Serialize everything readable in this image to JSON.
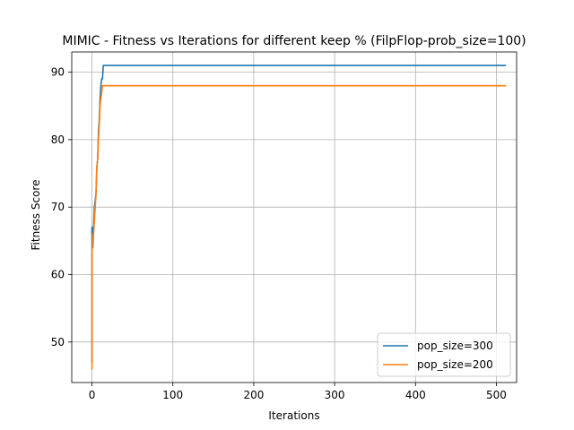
{
  "chart_data": {
    "type": "line",
    "title": "MIMIC - Fitness vs Iterations for different keep % (FilpFlop-prob_size=100)",
    "xlabel": "Iterations",
    "ylabel": "Fitness Score",
    "xlim": [
      -25,
      525
    ],
    "ylim": [
      44,
      93
    ],
    "xticks": [
      0,
      100,
      200,
      300,
      400,
      500
    ],
    "yticks": [
      50,
      60,
      70,
      80,
      90
    ],
    "grid": true,
    "legend_position": "lower right",
    "series": [
      {
        "name": "pop_size=300",
        "color": "#1f77b4",
        "x": [
          0,
          0,
          1,
          1,
          2,
          3,
          4,
          5,
          6,
          7,
          8,
          9,
          10,
          11,
          12,
          13,
          14,
          15,
          511
        ],
        "y": [
          47,
          67,
          67,
          64,
          67,
          70,
          71,
          72,
          76,
          77,
          81,
          83,
          86,
          88,
          89,
          89,
          91,
          91,
          91
        ]
      },
      {
        "name": "pop_size=200",
        "color": "#ff7f0e",
        "x": [
          0,
          0,
          1,
          2,
          3,
          4,
          5,
          6,
          7,
          8,
          9,
          10,
          11,
          12,
          13,
          14,
          15,
          511
        ],
        "y": [
          46,
          63,
          66,
          66,
          68,
          70,
          72,
          76,
          77,
          80,
          82,
          85,
          86,
          87,
          88,
          88,
          88,
          88
        ]
      }
    ]
  }
}
